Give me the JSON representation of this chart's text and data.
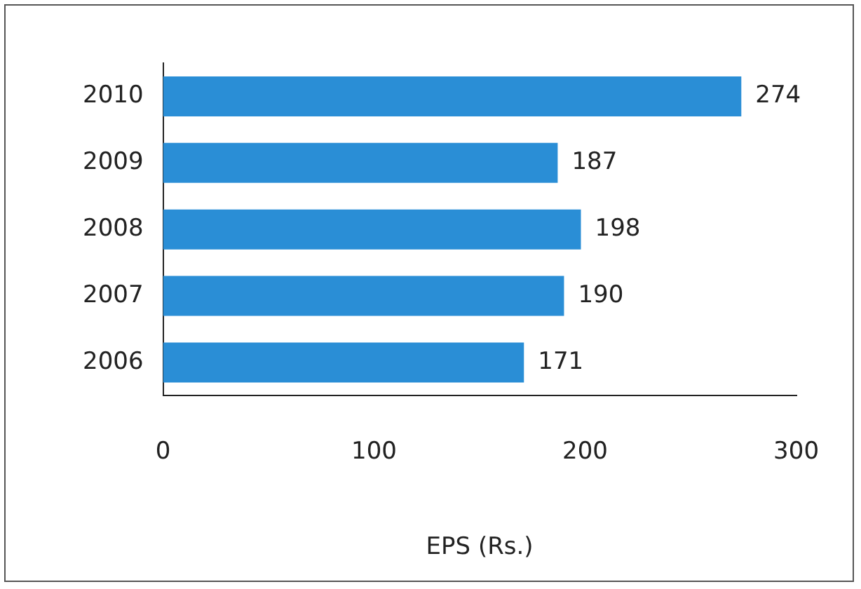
{
  "chart_data": {
    "type": "bar",
    "orientation": "horizontal",
    "categories": [
      "2010",
      "2009",
      "2008",
      "2007",
      "2006"
    ],
    "values": [
      274,
      187,
      198,
      190,
      171
    ],
    "color": "#2a8ed6",
    "xlim": [
      0,
      300
    ],
    "xticks": [
      0,
      100,
      200,
      300
    ],
    "xlabel": "EPS (Rs.)",
    "data_labels": true,
    "grid": false,
    "legend": false
  }
}
